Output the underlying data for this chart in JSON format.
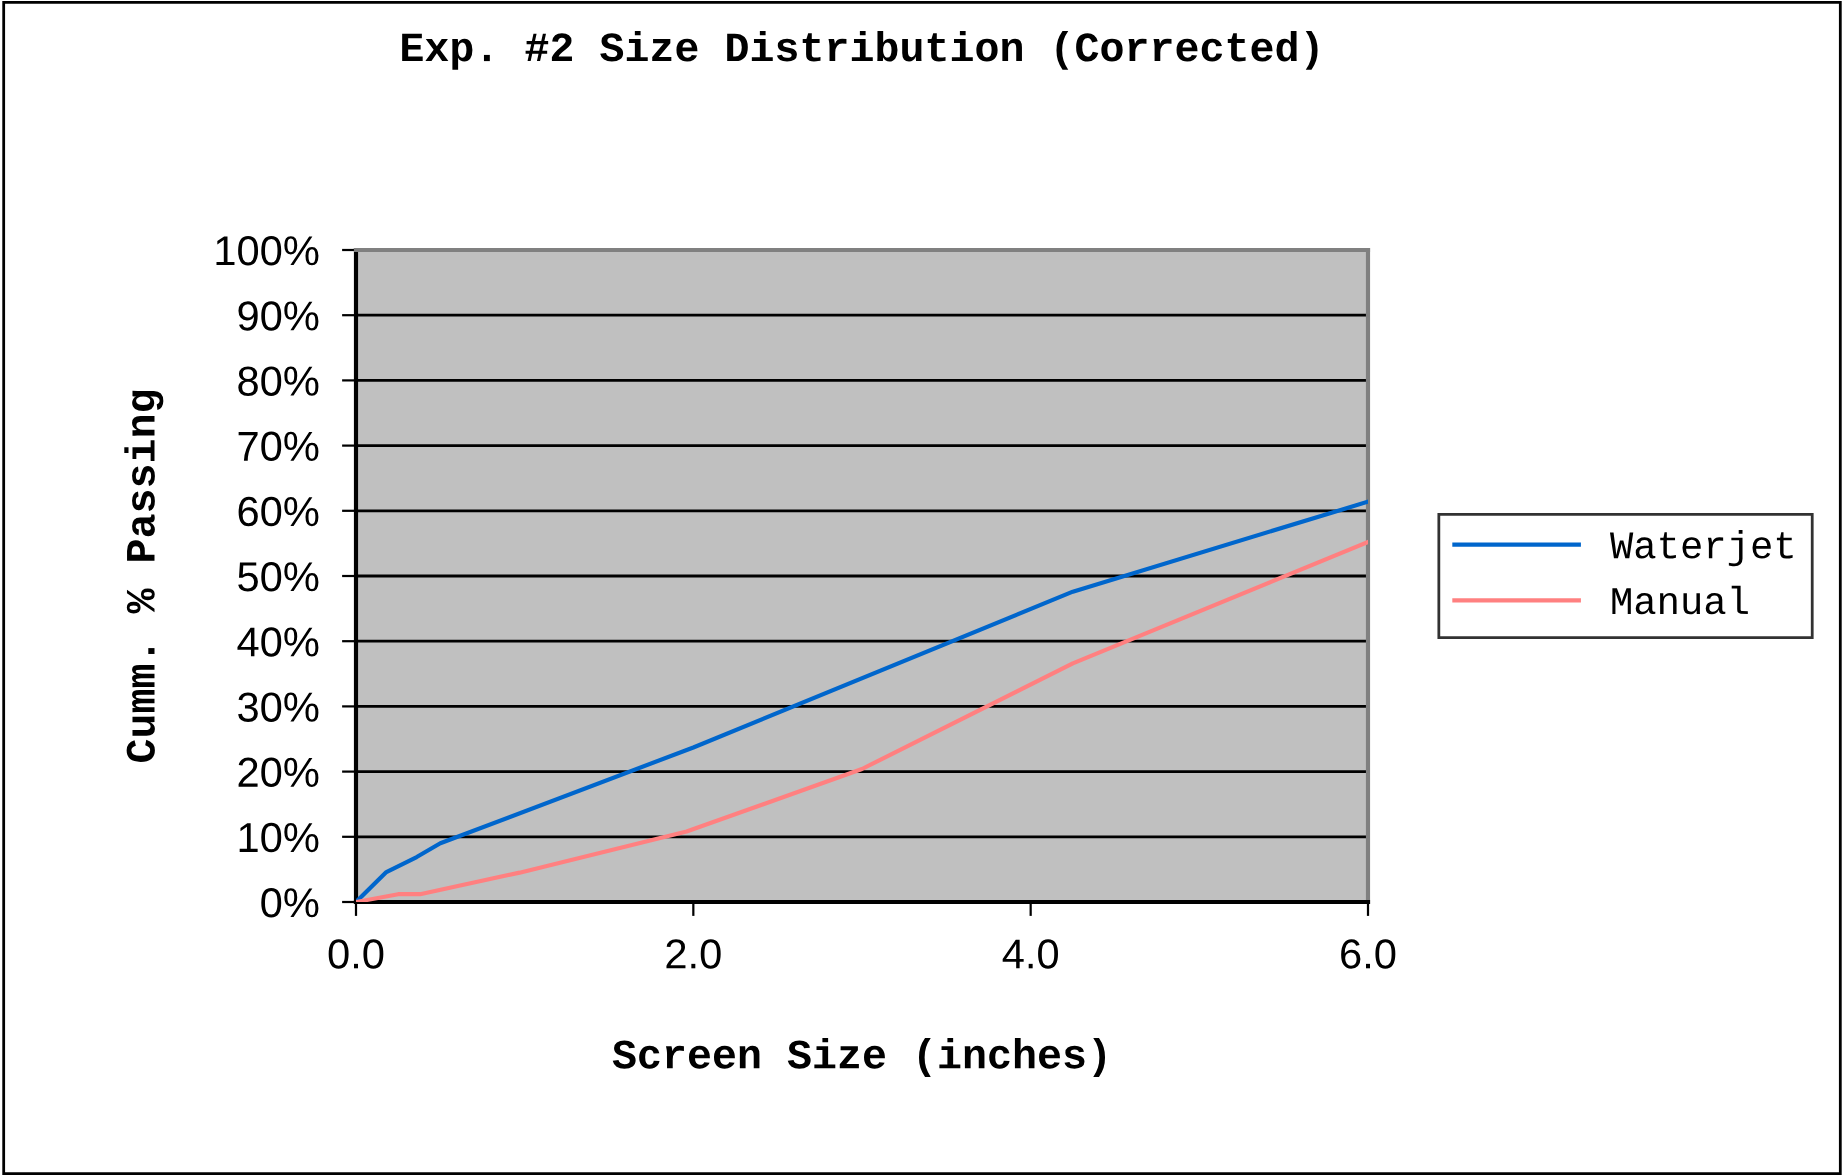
{
  "chart_data": {
    "type": "line",
    "title": "Exp. #2 Size Distribution (Corrected)",
    "xlabel": "Screen Size (inches)",
    "ylabel": "Cumm. % Passing",
    "series": [
      {
        "name": "Waterjet",
        "color": "#0066cc",
        "x": [
          0,
          0.18,
          0.36,
          0.5,
          2.0,
          4.25,
          6.0
        ],
        "values": [
          0,
          4.6,
          6.9,
          9.0,
          23.7,
          47.6,
          61.4
        ]
      },
      {
        "name": "Manual",
        "color": "#ff8080",
        "x": [
          0,
          0.25,
          0.38,
          0.97,
          1.96,
          3.0,
          4.25,
          6.0
        ],
        "values": [
          0,
          1.2,
          1.2,
          4.5,
          10.8,
          20.4,
          36.6,
          55.2
        ]
      }
    ],
    "xlim": [
      0,
      6
    ],
    "xticks": [
      {
        "value": 0,
        "label": "0.0"
      },
      {
        "value": 2,
        "label": "2.0"
      },
      {
        "value": 4,
        "label": "4.0"
      },
      {
        "value": 6,
        "label": "6.0"
      }
    ],
    "ylim": [
      0,
      100
    ],
    "yticks": [
      {
        "value": 0,
        "label": "0%"
      },
      {
        "value": 10,
        "label": "10%"
      },
      {
        "value": 20,
        "label": "20%"
      },
      {
        "value": 30,
        "label": "30%"
      },
      {
        "value": 40,
        "label": "40%"
      },
      {
        "value": 50,
        "label": "50%"
      },
      {
        "value": 60,
        "label": "60%"
      },
      {
        "value": 70,
        "label": "70%"
      },
      {
        "value": 80,
        "label": "80%"
      },
      {
        "value": 90,
        "label": "90%"
      },
      {
        "value": 100,
        "label": "100%"
      }
    ],
    "grid": "y",
    "legend": "right",
    "marker": "none",
    "line_style": "solid"
  }
}
